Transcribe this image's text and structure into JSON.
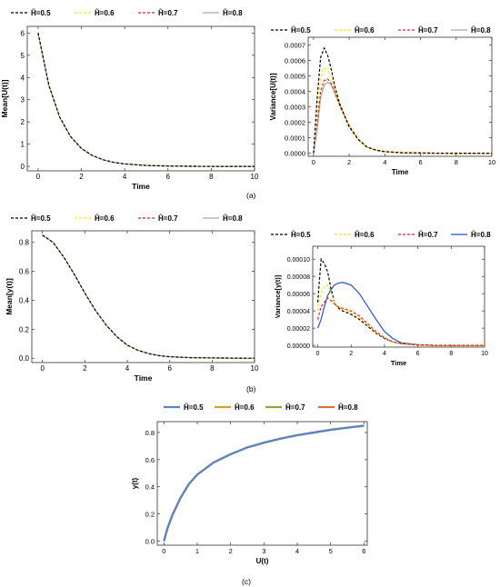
{
  "panel_labels": [
    "(a)",
    "(b)",
    "(c)"
  ],
  "chart_data": [
    {
      "type": "line",
      "xlabel": "Time",
      "ylabel": "Mean[U(t)]",
      "xlim": [
        -0.5,
        10
      ],
      "ylim": [
        -0.2,
        6.3
      ],
      "xticks": [
        0,
        2,
        4,
        6,
        8,
        10
      ],
      "yticks": [
        0,
        1,
        2,
        3,
        4,
        5,
        6
      ],
      "grid": false,
      "legend_position": "top",
      "x": [
        0,
        0.5,
        1,
        1.5,
        2,
        2.5,
        3,
        3.5,
        4,
        5,
        6,
        7,
        8,
        9,
        10
      ],
      "series": [
        {
          "name": "H̃=0.5",
          "color": "#000000",
          "style": "dashed",
          "values": [
            6.0,
            3.64,
            2.21,
            1.34,
            0.81,
            0.49,
            0.3,
            0.18,
            0.11,
            0.04,
            0.015,
            0.005,
            0.002,
            0.001,
            0.0
          ]
        },
        {
          "name": "H̃=0.6",
          "color": "#ffe600",
          "style": "dashed",
          "values": [
            6.0,
            3.64,
            2.21,
            1.34,
            0.81,
            0.49,
            0.3,
            0.18,
            0.11,
            0.04,
            0.015,
            0.005,
            0.002,
            0.001,
            0.0
          ]
        },
        {
          "name": "H̃=0.7",
          "color": "#e8202a",
          "style": "dashed",
          "values": [
            6.0,
            3.64,
            2.21,
            1.34,
            0.81,
            0.49,
            0.3,
            0.18,
            0.11,
            0.04,
            0.015,
            0.005,
            0.002,
            0.001,
            0.0
          ]
        },
        {
          "name": "H̃=0.8",
          "color": "#a8a8a8",
          "style": "solid",
          "values": [
            6.0,
            3.64,
            2.21,
            1.34,
            0.81,
            0.49,
            0.3,
            0.18,
            0.11,
            0.04,
            0.015,
            0.005,
            0.002,
            0.001,
            0.0
          ]
        }
      ]
    },
    {
      "type": "line",
      "xlabel": "Time",
      "ylabel": "Variance[U(t)]",
      "xlim": [
        -0.3,
        10
      ],
      "ylim": [
        -2e-05,
        0.00075
      ],
      "xticks": [
        0,
        2,
        4,
        6,
        8,
        10
      ],
      "yticks": [
        "0.0000",
        "0.0001",
        "0.0002",
        "0.0003",
        "0.0004",
        "0.0005",
        "0.0006",
        "0.0007"
      ],
      "grid": false,
      "legend_position": "top",
      "x": [
        0,
        0.2,
        0.4,
        0.6,
        0.8,
        1,
        1.2,
        1.5,
        2,
        2.5,
        3,
        3.5,
        4,
        5,
        6,
        7,
        8,
        10
      ],
      "series": [
        {
          "name": "H̃=0.5",
          "color": "#000000",
          "style": "dashed",
          "values": [
            0.0,
            0.00035,
            0.00062,
            0.00068,
            0.00063,
            0.00054,
            0.00043,
            0.00031,
            0.00017,
            9e-05,
            4e-05,
            2e-05,
            1e-05,
            3e-06,
            1e-06,
            0.0,
            0.0,
            0.0
          ]
        },
        {
          "name": "H̃=0.6",
          "color": "#ffe600",
          "style": "dashed",
          "values": [
            0.0,
            0.00025,
            0.00048,
            0.00055,
            0.00054,
            0.00049,
            0.00041,
            0.00031,
            0.00018,
            9e-05,
            4e-05,
            2e-05,
            1e-05,
            3e-06,
            1e-06,
            0.0,
            0.0,
            0.0
          ]
        },
        {
          "name": "H̃=0.7",
          "color": "#e8202a",
          "style": "dashed",
          "values": [
            0.0,
            0.00019,
            0.0004,
            0.00047,
            0.00048,
            0.00045,
            0.00039,
            0.0003,
            0.00018,
            9e-05,
            4e-05,
            2e-05,
            1e-05,
            3e-06,
            1e-06,
            0.0,
            0.0,
            0.0
          ]
        },
        {
          "name": "H̃=0.8",
          "color": "#a8a8a8",
          "style": "solid",
          "values": [
            0.0,
            0.00015,
            0.00036,
            0.00044,
            0.00046,
            0.00044,
            0.00039,
            0.0003,
            0.00018,
            9e-05,
            4e-05,
            2e-05,
            1e-05,
            3e-06,
            1e-06,
            0.0,
            0.0,
            0.0
          ]
        }
      ]
    },
    {
      "type": "line",
      "xlabel": "Time",
      "ylabel": "Mean[y(t)]",
      "xlim": [
        -0.5,
        10
      ],
      "ylim": [
        -0.03,
        0.88
      ],
      "xticks": [
        0,
        2,
        4,
        6,
        8,
        10
      ],
      "yticks": [
        "0.0",
        "0.2",
        "0.4",
        "0.6",
        "0.8"
      ],
      "grid": false,
      "legend_position": "top",
      "x": [
        0,
        0.5,
        1,
        1.5,
        2,
        2.5,
        3,
        3.5,
        4,
        4.5,
        5,
        5.5,
        6,
        7,
        8,
        9,
        10
      ],
      "series": [
        {
          "name": "H̃=0.5",
          "color": "#000000",
          "style": "dashed",
          "values": [
            0.85,
            0.8,
            0.7,
            0.58,
            0.45,
            0.33,
            0.23,
            0.15,
            0.09,
            0.055,
            0.032,
            0.018,
            0.01,
            0.004,
            0.002,
            0.001,
            0.0
          ]
        },
        {
          "name": "H̃=0.6",
          "color": "#ffe600",
          "style": "dashed",
          "values": [
            0.85,
            0.8,
            0.7,
            0.58,
            0.45,
            0.33,
            0.23,
            0.15,
            0.09,
            0.055,
            0.032,
            0.018,
            0.01,
            0.004,
            0.002,
            0.001,
            0.0
          ]
        },
        {
          "name": "H̃=0.7",
          "color": "#e8202a",
          "style": "dashed",
          "values": [
            0.85,
            0.8,
            0.7,
            0.58,
            0.45,
            0.33,
            0.23,
            0.15,
            0.09,
            0.055,
            0.032,
            0.018,
            0.01,
            0.004,
            0.002,
            0.001,
            0.0
          ]
        },
        {
          "name": "H̃=0.8",
          "color": "#a8a8a8",
          "style": "solid",
          "values": [
            0.85,
            0.8,
            0.7,
            0.58,
            0.45,
            0.33,
            0.23,
            0.15,
            0.09,
            0.055,
            0.032,
            0.018,
            0.01,
            0.004,
            0.002,
            0.001,
            0.0
          ]
        }
      ]
    },
    {
      "type": "line",
      "xlabel": "Time",
      "ylabel": "Variance[y(t)]",
      "xlim": [
        -0.3,
        10
      ],
      "ylim": [
        -2e-06,
        0.000115
      ],
      "xticks": [
        0,
        2,
        4,
        6,
        8,
        10
      ],
      "yticks": [
        "0.00000",
        "0.00002",
        "0.00004",
        "0.00006",
        "0.00008",
        "0.00010"
      ],
      "grid": false,
      "legend_position": "top",
      "x": [
        0,
        0.2,
        0.4,
        0.6,
        0.8,
        1,
        1.2,
        1.5,
        2,
        2.5,
        3,
        3.5,
        4,
        4.5,
        5,
        6,
        7,
        8,
        10
      ],
      "series": [
        {
          "name": "H̃=0.5",
          "color": "#000000",
          "style": "dashed",
          "values": [
            5e-05,
            0.0001,
            9.5e-05,
            8.5e-05,
            6.5e-05,
            5e-05,
            4.4e-05,
            4e-05,
            3.6e-05,
            3e-05,
            2.2e-05,
            1.4e-05,
            8e-06,
            4e-06,
            2e-06,
            5e-07,
            0.0,
            0.0,
            0.0
          ]
        },
        {
          "name": "H̃=0.6",
          "color": "#ffe600",
          "style": "dashed",
          "values": [
            4e-05,
            6e-05,
            6.8e-05,
            7e-05,
            6e-05,
            5e-05,
            4.5e-05,
            4.2e-05,
            3.8e-05,
            3.2e-05,
            2.4e-05,
            1.5e-05,
            9e-06,
            4e-06,
            2e-06,
            5e-07,
            0.0,
            0.0,
            0.0
          ]
        },
        {
          "name": "H̃=0.7",
          "color": "#e8202a",
          "style": "dashed",
          "values": [
            3e-05,
            4.5e-05,
            5e-05,
            5.5e-05,
            5.2e-05,
            4.8e-05,
            4.5e-05,
            4.3e-05,
            4e-05,
            3.4e-05,
            2.5e-05,
            1.6e-05,
            9e-06,
            4e-06,
            2e-06,
            5e-07,
            0.0,
            0.0,
            0.0
          ]
        },
        {
          "name": "H̃=0.8",
          "color": "#1f4ff0",
          "style": "solid",
          "values": [
            2e-05,
            3e-05,
            4.5e-05,
            5.8e-05,
            6.5e-05,
            7e-05,
            7.2e-05,
            7.3e-05,
            7e-05,
            6e-05,
            4.5e-05,
            3e-05,
            1.6e-05,
            8e-06,
            3e-06,
            7e-07,
            0.0,
            0.0,
            0.0
          ]
        }
      ]
    },
    {
      "type": "line",
      "xlabel": "U(t)",
      "ylabel": "y(t)",
      "xlim": [
        -0.2,
        6.1
      ],
      "ylim": [
        -0.03,
        0.88
      ],
      "xticks": [
        0,
        1,
        2,
        3,
        4,
        5,
        6
      ],
      "yticks": [
        "0.0",
        "0.2",
        "0.4",
        "0.6",
        "0.8"
      ],
      "grid": false,
      "legend_position": "top",
      "x": [
        0,
        0.1,
        0.25,
        0.5,
        0.75,
        1,
        1.5,
        2,
        2.5,
        3,
        3.5,
        4,
        4.5,
        5,
        5.5,
        6
      ],
      "series": [
        {
          "name": "H̃=0.5",
          "color": "#5b83c9",
          "style": "solid",
          "values": [
            0.0,
            0.09,
            0.19,
            0.32,
            0.42,
            0.49,
            0.58,
            0.64,
            0.69,
            0.725,
            0.755,
            0.78,
            0.8,
            0.82,
            0.835,
            0.85
          ]
        },
        {
          "name": "H̃=0.6",
          "color": "#d7a02a",
          "style": "solid",
          "values": [
            0.0,
            0.09,
            0.19,
            0.32,
            0.42,
            0.49,
            0.58,
            0.64,
            0.69,
            0.725,
            0.755,
            0.78,
            0.8,
            0.82,
            0.835,
            0.85
          ]
        },
        {
          "name": "H̃=0.7",
          "color": "#93a53a",
          "style": "solid",
          "values": [
            0.0,
            0.09,
            0.19,
            0.32,
            0.42,
            0.49,
            0.58,
            0.64,
            0.69,
            0.725,
            0.755,
            0.78,
            0.8,
            0.82,
            0.835,
            0.85
          ]
        },
        {
          "name": "H̃=0.8",
          "color": "#d9743a",
          "style": "solid",
          "values": [
            0.0,
            0.09,
            0.19,
            0.32,
            0.42,
            0.49,
            0.58,
            0.64,
            0.69,
            0.725,
            0.755,
            0.78,
            0.8,
            0.82,
            0.835,
            0.85
          ]
        }
      ]
    }
  ]
}
